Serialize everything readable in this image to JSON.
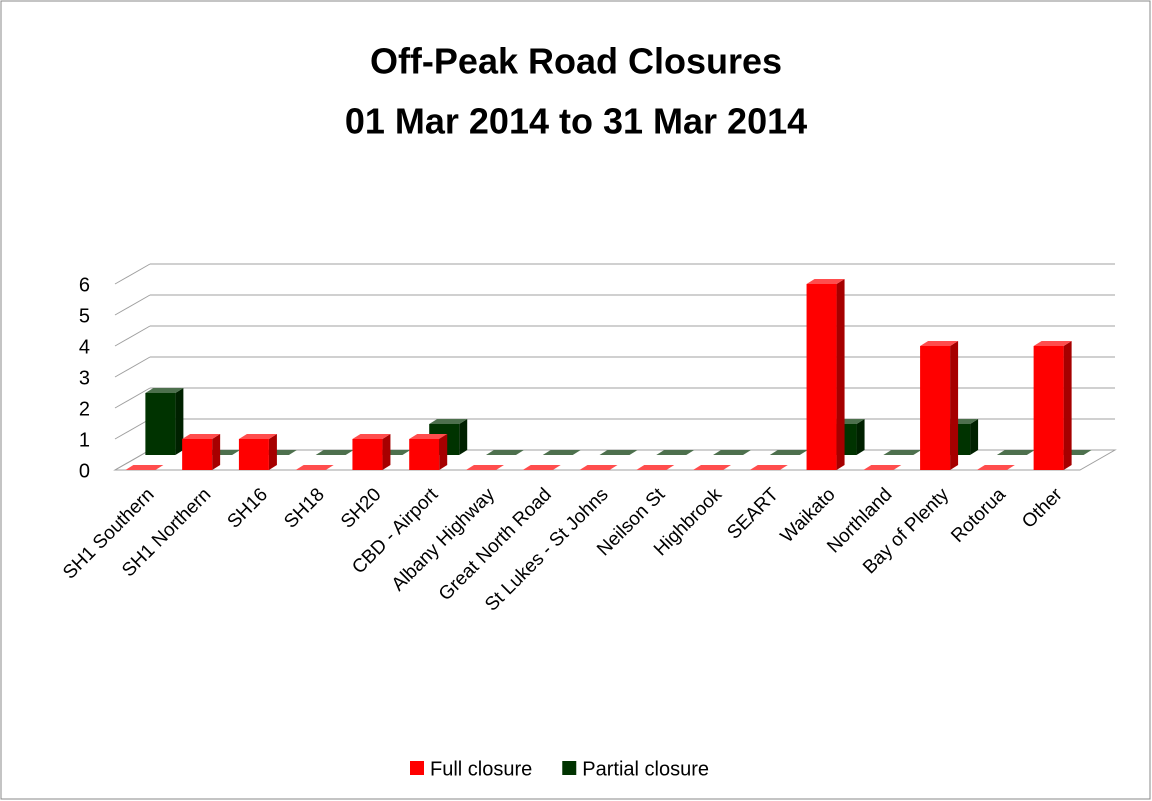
{
  "chart_data": {
    "type": "bar3d",
    "title": "Off-Peak Road Closures",
    "subtitle": "01 Mar 2014 to 31 Mar 2014",
    "categories": [
      "SH1 Southern",
      "SH1 Northern",
      "SH16",
      "SH18",
      "SH20",
      "CBD - Airport",
      "Albany Highway",
      "Great North Road",
      "St Lukes - St Johns",
      "Neilson St",
      "Highbrook",
      "SEART",
      "Waikato",
      "Northland",
      "Bay of Plenty",
      "Rotorua",
      "Other"
    ],
    "series": [
      {
        "name": "Full closure",
        "color": "#ff0000",
        "values": [
          0,
          1,
          1,
          0,
          1,
          1,
          0,
          0,
          0,
          0,
          0,
          0,
          6,
          0,
          4,
          0,
          4
        ]
      },
      {
        "name": "Partial closure",
        "color": "#003300",
        "values": [
          2,
          0,
          0,
          0,
          0,
          1,
          0,
          0,
          0,
          0,
          0,
          0,
          1,
          0,
          1,
          0,
          0
        ]
      }
    ],
    "ylim": [
      0,
      6
    ],
    "yticks": [
      0,
      1,
      2,
      3,
      4,
      5,
      6
    ],
    "grid": true,
    "legend": "bottom"
  }
}
